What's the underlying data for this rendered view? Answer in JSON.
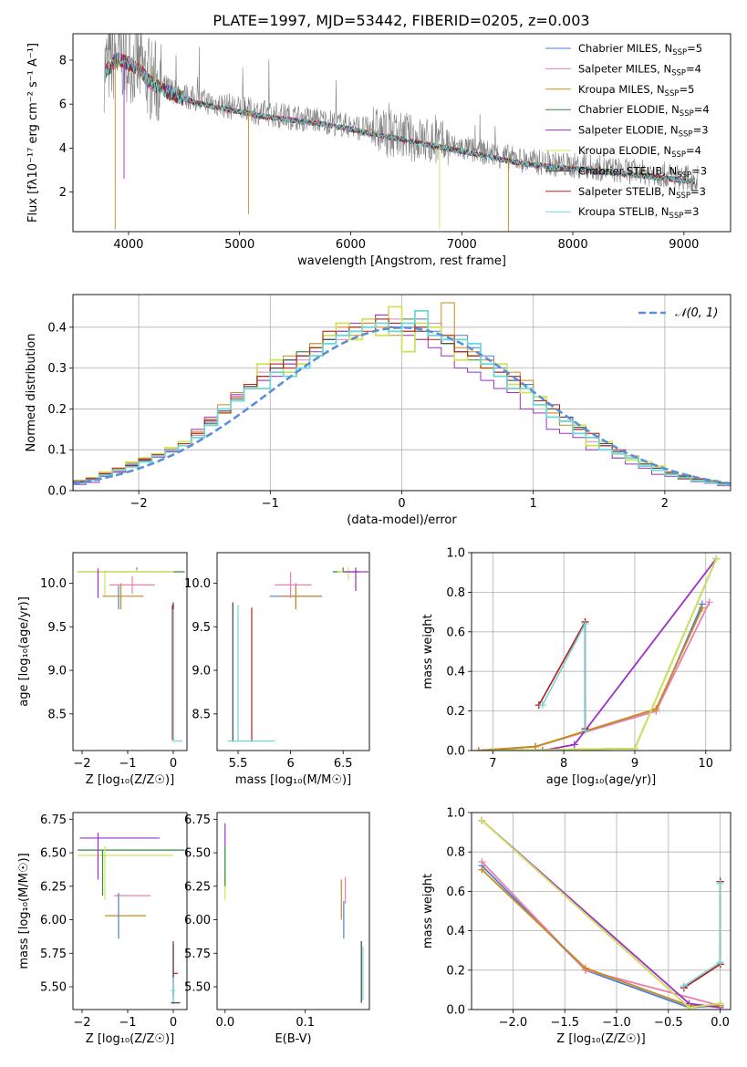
{
  "title": "PLATE=1997, MJD=53442, FIBERID=0205, z=0.003",
  "colors": {
    "Chabrier MILES": "#4a7fd6",
    "Salpeter MILES": "#e87fb0",
    "Kroupa MILES": "#c98a1a",
    "Chabrier ELODIE": "#2e8b3e",
    "Salpeter ELODIE": "#9b30c8",
    "Kroupa ELODIE": "#d4e25a",
    "Chabrier STELIB": "#404040",
    "Salpeter STELIB": "#c41e1e",
    "Kroupa STELIB": "#6fd6d6",
    "data": "#808080",
    "gauss": "#5b8fd6"
  },
  "legend_spectrum": [
    {
      "name": "Chabrier MILES",
      "nssp": "5"
    },
    {
      "name": "Salpeter MILES",
      "nssp": "4"
    },
    {
      "name": "Kroupa MILES",
      "nssp": "5"
    },
    {
      "name": "Chabrier ELODIE",
      "nssp": "4"
    },
    {
      "name": "Salpeter ELODIE",
      "nssp": "3"
    },
    {
      "name": "Kroupa ELODIE",
      "nssp": "4"
    },
    {
      "name": "Chabrier STELIB",
      "nssp": "3"
    },
    {
      "name": "Salpeter STELIB",
      "nssp": "3"
    },
    {
      "name": "Kroupa STELIB",
      "nssp": "3"
    }
  ],
  "legend_hist": "𝒩(0, 1)",
  "chart_data": [
    {
      "id": "spectrum",
      "type": "line",
      "xlabel": "wavelength [Angstrom, rest frame]",
      "ylabel": "Flux [fλ10⁻¹⁷ erg cm⁻² s⁻¹ A⁻¹]",
      "xlim": [
        3500,
        9420
      ],
      "ylim": [
        0.2,
        9.2
      ],
      "xticks": [
        4000,
        5000,
        6000,
        7000,
        8000,
        9000
      ],
      "yticks": [
        2,
        4,
        6,
        8
      ],
      "data_continuum": {
        "x": [
          3780,
          3900,
          4000,
          4100,
          4200,
          4400,
          4600,
          4800,
          4900,
          5000,
          5200,
          5500,
          5800,
          6000,
          6300,
          6600,
          7000,
          7300,
          7600,
          8000,
          8400,
          8800,
          9100
        ],
        "y": [
          7.6,
          8.2,
          8.0,
          7.7,
          7.1,
          6.6,
          6.2,
          6.0,
          5.9,
          5.8,
          5.6,
          5.4,
          5.2,
          5.0,
          4.7,
          4.4,
          4.0,
          3.7,
          3.4,
          3.2,
          3.0,
          2.8,
          2.6
        ]
      }
    },
    {
      "id": "residual_hist",
      "type": "histogram",
      "xlabel": "(data-model)/error",
      "ylabel": "Normed distribution",
      "xlim": [
        -2.5,
        2.5
      ],
      "ylim": [
        0,
        0.48
      ],
      "xticks": [
        -2,
        -1,
        0,
        1,
        2
      ],
      "yticks": [
        0.0,
        0.1,
        0.2,
        0.3,
        0.4
      ],
      "series": [
        {
          "name": "Chabrier MILES",
          "values": [
            0.022,
            0.03,
            0.042,
            0.05,
            0.065,
            0.078,
            0.088,
            0.1,
            0.115,
            0.14,
            0.17,
            0.2,
            0.23,
            0.26,
            0.28,
            0.3,
            0.32,
            0.33,
            0.35,
            0.37,
            0.38,
            0.39,
            0.4,
            0.42,
            0.41,
            0.4,
            0.42,
            0.39,
            0.37,
            0.38,
            0.35,
            0.33,
            0.3,
            0.28,
            0.26,
            0.22,
            0.2,
            0.17,
            0.15,
            0.13,
            0.11,
            0.09,
            0.08,
            0.065,
            0.05,
            0.04,
            0.035,
            0.028,
            0.022,
            0.018
          ]
        },
        {
          "name": "Salpeter MILES",
          "values": [
            0.02,
            0.028,
            0.04,
            0.048,
            0.062,
            0.08,
            0.09,
            0.1,
            0.11,
            0.135,
            0.165,
            0.195,
            0.22,
            0.25,
            0.29,
            0.31,
            0.3,
            0.32,
            0.36,
            0.38,
            0.37,
            0.4,
            0.41,
            0.43,
            0.42,
            0.39,
            0.44,
            0.41,
            0.36,
            0.37,
            0.36,
            0.31,
            0.29,
            0.27,
            0.25,
            0.23,
            0.19,
            0.18,
            0.14,
            0.12,
            0.12,
            0.1,
            0.075,
            0.06,
            0.05,
            0.045,
            0.03,
            0.025,
            0.02,
            0.015
          ]
        },
        {
          "name": "Kroupa MILES",
          "values": [
            0.025,
            0.032,
            0.045,
            0.052,
            0.068,
            0.075,
            0.085,
            0.105,
            0.12,
            0.145,
            0.175,
            0.21,
            0.24,
            0.255,
            0.27,
            0.29,
            0.33,
            0.34,
            0.36,
            0.39,
            0.4,
            0.38,
            0.41,
            0.4,
            0.38,
            0.39,
            0.37,
            0.38,
            0.46,
            0.35,
            0.34,
            0.32,
            0.31,
            0.29,
            0.27,
            0.21,
            0.19,
            0.16,
            0.16,
            0.14,
            0.11,
            0.08,
            0.085,
            0.07,
            0.055,
            0.04,
            0.038,
            0.03,
            0.025,
            0.02
          ]
        },
        {
          "name": "Chabrier ELODIE",
          "values": [
            0.018,
            0.025,
            0.038,
            0.045,
            0.06,
            0.07,
            0.09,
            0.095,
            0.11,
            0.13,
            0.16,
            0.19,
            0.22,
            0.25,
            0.28,
            0.3,
            0.31,
            0.34,
            0.35,
            0.37,
            0.39,
            0.4,
            0.42,
            0.41,
            0.4,
            0.42,
            0.4,
            0.38,
            0.36,
            0.34,
            0.32,
            0.3,
            0.28,
            0.26,
            0.24,
            0.22,
            0.2,
            0.17,
            0.15,
            0.13,
            0.11,
            0.095,
            0.08,
            0.065,
            0.055,
            0.042,
            0.035,
            0.025,
            0.02,
            0.015
          ]
        },
        {
          "name": "Salpeter ELODIE",
          "values": [
            0.015,
            0.02,
            0.035,
            0.045,
            0.06,
            0.072,
            0.082,
            0.095,
            0.11,
            0.15,
            0.18,
            0.2,
            0.235,
            0.26,
            0.27,
            0.28,
            0.31,
            0.33,
            0.34,
            0.36,
            0.39,
            0.41,
            0.4,
            0.43,
            0.4,
            0.38,
            0.37,
            0.35,
            0.33,
            0.3,
            0.29,
            0.27,
            0.25,
            0.24,
            0.2,
            0.19,
            0.15,
            0.14,
            0.13,
            0.1,
            0.1,
            0.08,
            0.065,
            0.055,
            0.04,
            0.035,
            0.028,
            0.022,
            0.018,
            0.012
          ]
        },
        {
          "name": "Kroupa ELODIE",
          "values": [
            0.02,
            0.03,
            0.045,
            0.055,
            0.07,
            0.08,
            0.09,
            0.105,
            0.12,
            0.14,
            0.16,
            0.19,
            0.22,
            0.25,
            0.31,
            0.32,
            0.29,
            0.31,
            0.35,
            0.38,
            0.41,
            0.37,
            0.42,
            0.38,
            0.45,
            0.34,
            0.41,
            0.4,
            0.38,
            0.32,
            0.33,
            0.3,
            0.31,
            0.26,
            0.24,
            0.23,
            0.2,
            0.17,
            0.16,
            0.11,
            0.12,
            0.09,
            0.075,
            0.07,
            0.06,
            0.045,
            0.03,
            0.025,
            0.02,
            0.015
          ]
        },
        {
          "name": "Chabrier STELIB",
          "values": [
            0.022,
            0.028,
            0.04,
            0.05,
            0.06,
            0.075,
            0.085,
            0.1,
            0.115,
            0.14,
            0.165,
            0.195,
            0.225,
            0.255,
            0.28,
            0.3,
            0.32,
            0.33,
            0.35,
            0.37,
            0.38,
            0.39,
            0.4,
            0.41,
            0.4,
            0.41,
            0.39,
            0.38,
            0.36,
            0.34,
            0.33,
            0.31,
            0.29,
            0.27,
            0.25,
            0.22,
            0.2,
            0.18,
            0.155,
            0.13,
            0.115,
            0.095,
            0.08,
            0.065,
            0.055,
            0.042,
            0.035,
            0.028,
            0.022,
            0.018
          ]
        },
        {
          "name": "Salpeter STELIB",
          "values": [
            0.02,
            0.03,
            0.042,
            0.055,
            0.062,
            0.078,
            0.088,
            0.1,
            0.115,
            0.14,
            0.172,
            0.19,
            0.23,
            0.26,
            0.28,
            0.31,
            0.3,
            0.33,
            0.35,
            0.39,
            0.38,
            0.4,
            0.39,
            0.42,
            0.41,
            0.39,
            0.4,
            0.37,
            0.38,
            0.34,
            0.33,
            0.3,
            0.29,
            0.28,
            0.25,
            0.22,
            0.21,
            0.17,
            0.15,
            0.14,
            0.11,
            0.1,
            0.08,
            0.06,
            0.05,
            0.045,
            0.03,
            0.028,
            0.02,
            0.015
          ]
        },
        {
          "name": "Kroupa STELIB",
          "values": [
            0.018,
            0.026,
            0.038,
            0.05,
            0.058,
            0.07,
            0.085,
            0.098,
            0.11,
            0.13,
            0.16,
            0.2,
            0.22,
            0.25,
            0.25,
            0.29,
            0.28,
            0.3,
            0.33,
            0.36,
            0.38,
            0.39,
            0.4,
            0.41,
            0.39,
            0.41,
            0.44,
            0.38,
            0.37,
            0.37,
            0.36,
            0.31,
            0.28,
            0.25,
            0.25,
            0.21,
            0.18,
            0.17,
            0.14,
            0.13,
            0.1,
            0.09,
            0.08,
            0.06,
            0.05,
            0.04,
            0.032,
            0.025,
            0.02,
            0.015
          ]
        }
      ]
    },
    {
      "id": "age_vs_Z",
      "type": "scatter",
      "xlabel": "Z [log₁₀(Z/Z☉)]",
      "ylabel": "age  [log₁₀(age/yr)]",
      "xlim": [
        -2.2,
        0.3
      ],
      "ylim": [
        8.08,
        10.35
      ],
      "xticks": [
        -2,
        -1,
        0
      ],
      "yticks": [
        8.5,
        9.0,
        9.5,
        10.0
      ]
    },
    {
      "id": "age_vs_mass",
      "type": "scatter",
      "xlabel": "mass [log₁₀(M/M☉)]",
      "xlim": [
        5.3,
        6.75
      ],
      "ylim": [
        8.08,
        10.35
      ],
      "xticks": [
        5.5,
        6.0,
        6.5
      ],
      "yticks": [
        8.5,
        9.0,
        9.5,
        10.0
      ]
    },
    {
      "id": "weight_vs_age",
      "type": "line",
      "xlabel": "age  [log₁₀(age/yr)]",
      "ylabel": "mass weight",
      "xlim": [
        6.7,
        10.35
      ],
      "ylim": [
        0,
        1
      ],
      "xticks": [
        7,
        8,
        9,
        10
      ],
      "yticks": [
        0.0,
        0.2,
        0.4,
        0.6,
        0.8,
        1.0
      ],
      "series": [
        {
          "name": "Chabrier MILES",
          "x": [
            6.8,
            7.6,
            9.3,
            9.95
          ],
          "y": [
            0.0,
            0.02,
            0.2,
            0.74
          ]
        },
        {
          "name": "Salpeter MILES",
          "x": [
            6.8,
            7.6,
            9.3,
            10.05
          ],
          "y": [
            0.0,
            0.02,
            0.2,
            0.75
          ]
        },
        {
          "name": "Kroupa MILES",
          "x": [
            6.8,
            7.6,
            9.3,
            9.95
          ],
          "y": [
            0.0,
            0.02,
            0.21,
            0.72
          ]
        },
        {
          "name": "Chabrier ELODIE",
          "x": [
            7.0,
            9.0,
            10.15
          ],
          "y": [
            0.0,
            0.01,
            0.97
          ]
        },
        {
          "name": "Salpeter ELODIE",
          "x": [
            7.7,
            8.15,
            10.15
          ],
          "y": [
            0.0,
            0.03,
            0.97
          ]
        },
        {
          "name": "Kroupa ELODIE",
          "x": [
            7.0,
            9.0,
            10.15
          ],
          "y": [
            0.0,
            0.01,
            0.97
          ]
        },
        {
          "name": "Chabrier STELIB",
          "x": [
            7.65,
            8.3,
            8.3
          ],
          "y": [
            0.23,
            0.65,
            0.11
          ]
        },
        {
          "name": "Salpeter STELIB",
          "x": [
            7.65,
            8.3,
            8.3
          ],
          "y": [
            0.23,
            0.65,
            0.11
          ]
        },
        {
          "name": "Kroupa STELIB",
          "x": [
            7.7,
            8.3,
            8.3
          ],
          "y": [
            0.23,
            0.64,
            0.1
          ]
        }
      ]
    },
    {
      "id": "mass_vs_Z",
      "type": "scatter",
      "xlabel": "Z [log₁₀(Z/Z☉)]",
      "ylabel": "mass [log₁₀(M/M☉)]",
      "xlim": [
        -2.2,
        0.3
      ],
      "ylim": [
        5.33,
        6.8
      ],
      "xticks": [
        -2,
        -1,
        0
      ],
      "yticks": [
        5.5,
        5.75,
        6.0,
        6.25,
        6.5,
        6.75
      ]
    },
    {
      "id": "mass_vs_ebv",
      "type": "scatter",
      "xlabel": "E(B-V)",
      "xlim": [
        -0.01,
        0.18
      ],
      "ylim": [
        5.33,
        6.8
      ],
      "xticks": [
        0.0,
        0.1
      ],
      "yticks": [
        5.5,
        5.75,
        6.0,
        6.25,
        6.5,
        6.75
      ]
    },
    {
      "id": "weight_vs_Z",
      "type": "line",
      "xlabel": "Z [log₁₀(Z/Z☉)]",
      "ylabel": "mass weight",
      "xlim": [
        -2.4,
        0.1
      ],
      "ylim": [
        0,
        1
      ],
      "xticks": [
        -2.0,
        -1.5,
        -1.0,
        -0.5,
        0.0
      ],
      "yticks": [
        0.0,
        0.2,
        0.4,
        0.6,
        0.8,
        1.0
      ],
      "series": [
        {
          "name": "Chabrier MILES",
          "x": [
            -2.3,
            -1.3,
            -0.3,
            0.0
          ],
          "y": [
            0.73,
            0.2,
            0.01,
            0.02
          ]
        },
        {
          "name": "Salpeter MILES",
          "x": [
            -2.3,
            -1.3,
            0.0
          ],
          "y": [
            0.75,
            0.2,
            0.02
          ]
        },
        {
          "name": "Kroupa MILES",
          "x": [
            -2.3,
            -1.3,
            -0.3,
            0.0
          ],
          "y": [
            0.71,
            0.21,
            0.02,
            0.02
          ]
        },
        {
          "name": "Chabrier ELODIE",
          "x": [
            -2.3,
            -0.3,
            0.0
          ],
          "y": [
            0.96,
            0.01,
            0.03
          ]
        },
        {
          "name": "Salpeter ELODIE",
          "x": [
            -2.3,
            -0.3,
            0.0
          ],
          "y": [
            0.96,
            0.03,
            0.01
          ]
        },
        {
          "name": "Kroupa ELODIE",
          "x": [
            -2.3,
            -0.3,
            0.0
          ],
          "y": [
            0.96,
            0.01,
            0.03
          ]
        },
        {
          "name": "Chabrier STELIB",
          "x": [
            -0.35,
            0.0,
            0.0
          ],
          "y": [
            0.11,
            0.23,
            0.65
          ]
        },
        {
          "name": "Salpeter STELIB",
          "x": [
            -0.35,
            0.0,
            0.0
          ],
          "y": [
            0.11,
            0.23,
            0.65
          ]
        },
        {
          "name": "Kroupa STELIB",
          "x": [
            -0.35,
            0.0,
            0.0
          ],
          "y": [
            0.12,
            0.24,
            0.64
          ]
        }
      ]
    }
  ]
}
